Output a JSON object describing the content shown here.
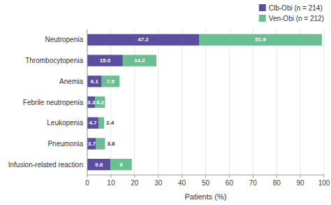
{
  "chart_data": {
    "type": "bar",
    "orientation": "horizontal",
    "stacked": true,
    "categories": [
      "Neutropenia",
      "Thrombocytopenia",
      "Anemia",
      "Febrile neutropenia",
      "Leukopenia",
      "Pneumonia",
      "Infusion-related reaction"
    ],
    "series": [
      {
        "name": "Clb-Obi (n = 214)",
        "color": "#5b4ea0",
        "values": [
          47.2,
          15.0,
          6.1,
          3.3,
          4.7,
          3.7,
          9.8
        ],
        "value_labels": [
          "47.2",
          "15.0",
          "6.1",
          "3.3",
          "4.7",
          "3.7",
          "9.8"
        ]
      },
      {
        "name": "Ven-Obi (n = 212)",
        "color": "#6abf92",
        "values": [
          51.9,
          14.2,
          7.5,
          4.2,
          2.4,
          3.8,
          9.0
        ],
        "value_labels": [
          "51.9",
          "14.2",
          "7.5",
          "4.2",
          "2.4",
          "3.8",
          "9"
        ]
      }
    ],
    "xlabel": "Patients (%)",
    "xlim": [
      0,
      100
    ],
    "xticks": [
      0,
      10,
      20,
      30,
      40,
      50,
      60,
      70,
      80,
      90,
      100
    ],
    "grid": true,
    "legend": "upper right",
    "data_labels": true
  }
}
